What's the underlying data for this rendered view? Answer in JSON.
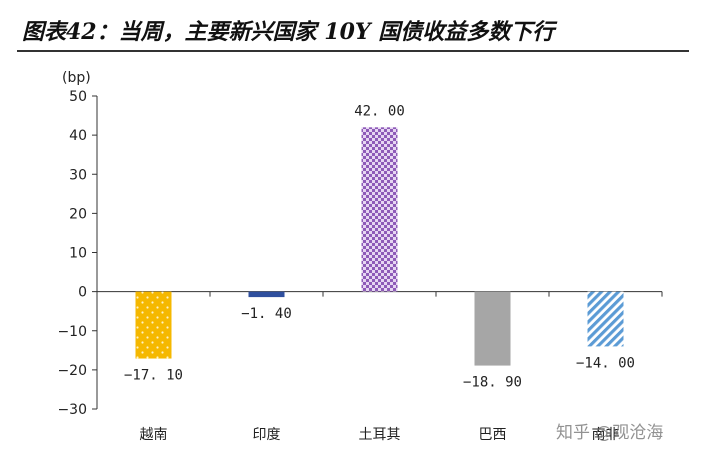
{
  "title": "图表42：当周，主要新兴国家 10Y 国债收益多数下行",
  "watermark": "知乎 @观沧海",
  "colors": {
    "axis": "#333333",
    "vietnam": "#f5b800",
    "india": "#2f4f9e",
    "turkey": "#8e5bb8",
    "brazil": "#a6a6a6",
    "south_africa": "#5b9bd5"
  },
  "chart_data": {
    "type": "bar",
    "ylabel": "(bp)",
    "ylim": [
      -30,
      50
    ],
    "yticks": [
      -30,
      -20,
      -10,
      0,
      10,
      20,
      30,
      40,
      50
    ],
    "ytick_labels": [
      "−30",
      "−20",
      "−10",
      "0",
      "10",
      "20",
      "30",
      "40",
      "50"
    ],
    "categories": [
      "越南",
      "印度",
      "土耳其",
      "巴西",
      "南非"
    ],
    "values": [
      -17.1,
      -1.4,
      42.0,
      -18.9,
      -14.0
    ],
    "value_labels": [
      "−17. 10",
      "−1. 40",
      "42. 00",
      "−18. 90",
      "−14. 00"
    ],
    "bar_colors": [
      "#f5b800",
      "#2f4f9e",
      "#8e5bb8",
      "#a6a6a6",
      "#5b9bd5"
    ],
    "bar_patterns": [
      "dots-light",
      "solid",
      "checker",
      "solid",
      "diagonal"
    ],
    "grid": false,
    "legend": "none"
  }
}
